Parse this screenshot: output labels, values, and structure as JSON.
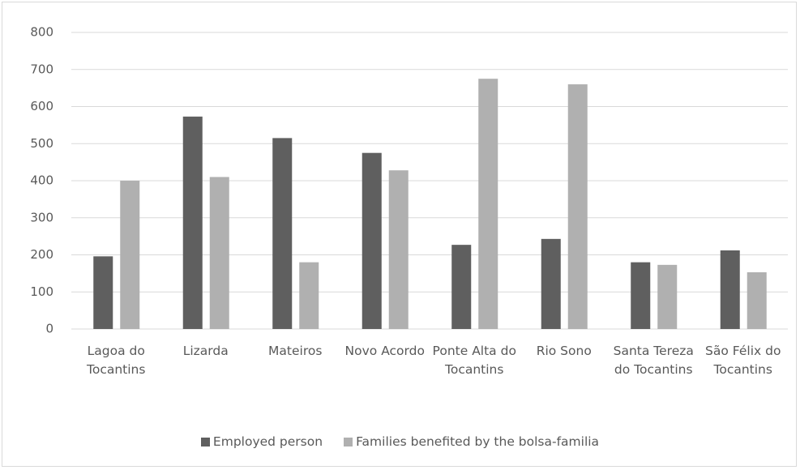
{
  "chart_data": {
    "type": "bar",
    "categories": [
      "Lagoa do Tocantins",
      "Lizarda",
      "Mateiros",
      "Novo Acordo",
      "Ponte Alta do Tocantins",
      "Rio Sono",
      "Santa Tereza do Tocantins",
      "São Félix do Tocantins"
    ],
    "series": [
      {
        "name": "Employed person",
        "color": "#5f5f5f",
        "values": [
          196,
          573,
          515,
          475,
          227,
          243,
          180,
          212
        ]
      },
      {
        "name": "Families benefited by the bolsa-familia",
        "color": "#b0b0b0",
        "values": [
          400,
          410,
          180,
          428,
          675,
          660,
          173,
          153
        ]
      }
    ],
    "ylim": [
      0,
      800
    ],
    "yticks": [
      0,
      100,
      200,
      300,
      400,
      500,
      600,
      700,
      800
    ],
    "grid": true,
    "legend": "bottom"
  }
}
